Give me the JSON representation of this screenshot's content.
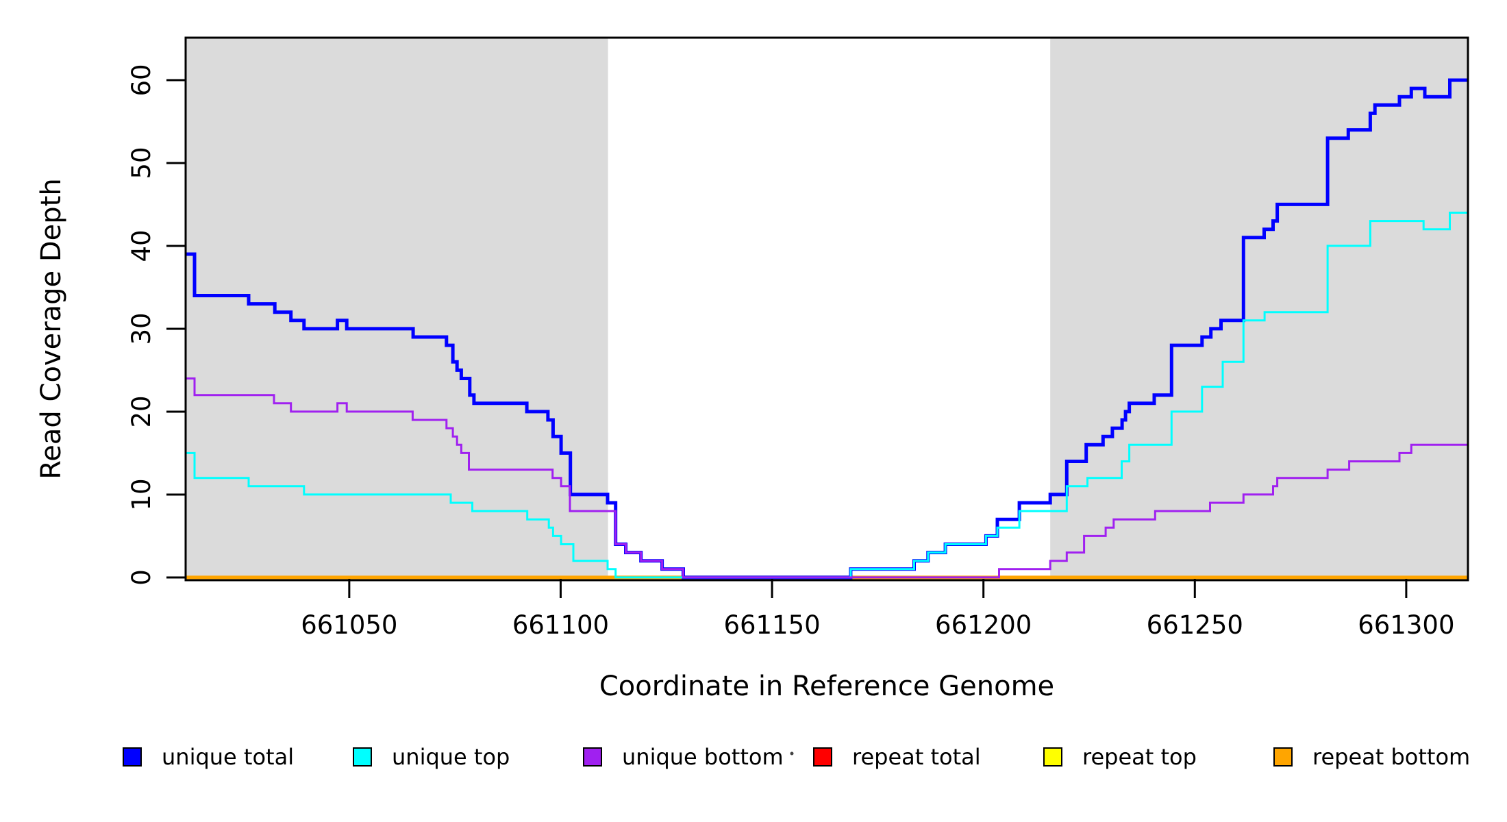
{
  "chart_data": {
    "type": "line",
    "subtype": "step",
    "title": "",
    "xlabel": "Coordinate in Reference Genome",
    "ylabel": "Read Coverage Depth",
    "xlim": [
      661011.3,
      661314.6
    ],
    "ylim": [
      -0.17,
      65.12
    ],
    "x_ticks": [
      661050,
      661100,
      661150,
      661200,
      661250,
      661300
    ],
    "y_ticks": [
      0,
      10,
      20,
      30,
      40,
      50,
      60
    ],
    "grid": false,
    "legend_position": "bottom",
    "shade_color": "#DBDBDB",
    "shaded_regions": [
      {
        "x0": 661011.3,
        "x1": 661111.2
      },
      {
        "x0": 661215.8,
        "x1": 661314.6
      }
    ],
    "series": [
      {
        "name": "repeat total",
        "color": "#FF0000",
        "width": 3,
        "steps": [
          [
            661011.3,
            0
          ]
        ]
      },
      {
        "name": "repeat top",
        "color": "#FFFF00",
        "width": 3,
        "steps": [
          [
            661011.3,
            0
          ]
        ]
      },
      {
        "name": "repeat bottom",
        "color": "#FFA500",
        "width": 5,
        "steps": [
          [
            661011.3,
            0
          ]
        ]
      },
      {
        "name": "unique total",
        "color": "#0000FF",
        "width": 5,
        "steps": [
          [
            661011.3,
            39
          ],
          [
            661013.4,
            34
          ],
          [
            661026.2,
            33
          ],
          [
            661032.4,
            32
          ],
          [
            661036.2,
            31
          ],
          [
            661039.3,
            30
          ],
          [
            661047.2,
            31
          ],
          [
            661049.4,
            30
          ],
          [
            661065.1,
            29
          ],
          [
            661073,
            28
          ],
          [
            661074.5,
            26
          ],
          [
            661075.5,
            25
          ],
          [
            661076.5,
            24
          ],
          [
            661078.5,
            22
          ],
          [
            661079.5,
            21
          ],
          [
            661092,
            20
          ],
          [
            661097,
            19
          ],
          [
            661098.2,
            17
          ],
          [
            661100.1,
            15
          ],
          [
            661102.3,
            10
          ],
          [
            661111.1,
            9
          ],
          [
            661113,
            4
          ],
          [
            661115.4,
            3
          ],
          [
            661119,
            2
          ],
          [
            661124,
            1
          ],
          [
            661129,
            0
          ],
          [
            661168.6,
            1
          ],
          [
            661183.6,
            2
          ],
          [
            661186.9,
            3
          ],
          [
            661191,
            4
          ],
          [
            661200.6,
            5
          ],
          [
            661203.3,
            7
          ],
          [
            661208.5,
            9
          ],
          [
            661215.8,
            10
          ],
          [
            661219.7,
            14
          ],
          [
            661224.3,
            16
          ],
          [
            661228.3,
            17
          ],
          [
            661230.5,
            18
          ],
          [
            661232.8,
            19
          ],
          [
            661233.6,
            20
          ],
          [
            661234.5,
            21
          ],
          [
            661240.4,
            22
          ],
          [
            661244.5,
            28
          ],
          [
            661251.7,
            29
          ],
          [
            661253.8,
            30
          ],
          [
            661256.2,
            31
          ],
          [
            661261.5,
            41
          ],
          [
            661266.4,
            42
          ],
          [
            661268.5,
            43
          ],
          [
            661269.5,
            45
          ],
          [
            661281.4,
            53
          ],
          [
            661286.3,
            54
          ],
          [
            661291.5,
            56
          ],
          [
            661292.6,
            57
          ],
          [
            661298.4,
            58
          ],
          [
            661301.2,
            59
          ],
          [
            661304.4,
            58
          ],
          [
            661310.3,
            60
          ]
        ]
      },
      {
        "name": "unique top",
        "color": "#00FFFF",
        "width": 3,
        "steps": [
          [
            661011.3,
            15
          ],
          [
            661013.4,
            12
          ],
          [
            661026.2,
            11
          ],
          [
            661039.3,
            10
          ],
          [
            661074,
            9
          ],
          [
            661079.1,
            8
          ],
          [
            661092.1,
            7
          ],
          [
            661097.2,
            6
          ],
          [
            661098.2,
            5
          ],
          [
            661100.1,
            4
          ],
          [
            661103,
            2
          ],
          [
            661111.1,
            1
          ],
          [
            661113,
            0
          ],
          [
            661168.6,
            1
          ],
          [
            661183.6,
            2
          ],
          [
            661186.9,
            3
          ],
          [
            661191,
            4
          ],
          [
            661200.6,
            5
          ],
          [
            661203.3,
            6
          ],
          [
            661208.5,
            8
          ],
          [
            661219.7,
            11
          ],
          [
            661224.6,
            12
          ],
          [
            661232.7,
            14
          ],
          [
            661234.5,
            16
          ],
          [
            661244.5,
            20
          ],
          [
            661251.7,
            23
          ],
          [
            661256.6,
            26
          ],
          [
            661261.5,
            31
          ],
          [
            661266.5,
            32
          ],
          [
            661281.4,
            40
          ],
          [
            661291.5,
            43
          ],
          [
            661304.1,
            42
          ],
          [
            661310.3,
            44
          ]
        ]
      },
      {
        "name": "unique bottom",
        "color": "#A020F0",
        "width": 3,
        "steps": [
          [
            661011.3,
            24
          ],
          [
            661013.4,
            22
          ],
          [
            661032.2,
            21
          ],
          [
            661036.2,
            20
          ],
          [
            661047.2,
            21
          ],
          [
            661049.4,
            20
          ],
          [
            661065,
            19
          ],
          [
            661073,
            18
          ],
          [
            661074.5,
            17
          ],
          [
            661075.5,
            16
          ],
          [
            661076.5,
            15
          ],
          [
            661078.3,
            13
          ],
          [
            661098.1,
            12
          ],
          [
            661100.1,
            11
          ],
          [
            661102.2,
            8
          ],
          [
            661113,
            4
          ],
          [
            661115.4,
            3
          ],
          [
            661119,
            2
          ],
          [
            661124,
            1
          ],
          [
            661129,
            0
          ],
          [
            661203.7,
            1
          ],
          [
            661215.8,
            2
          ],
          [
            661219.7,
            3
          ],
          [
            661223.8,
            5
          ],
          [
            661228.9,
            6
          ],
          [
            661230.8,
            7
          ],
          [
            661240.6,
            8
          ],
          [
            661253.6,
            9
          ],
          [
            661261.5,
            10
          ],
          [
            661268.5,
            11
          ],
          [
            661269.5,
            12
          ],
          [
            661281.4,
            13
          ],
          [
            661286.5,
            14
          ],
          [
            661298.4,
            15
          ],
          [
            661301.2,
            16
          ]
        ]
      }
    ],
    "legend": {
      "entries": [
        {
          "label": "unique total",
          "color": "#0000FF"
        },
        {
          "label": "unique top",
          "color": "#00FFFF"
        },
        {
          "label": "unique bottom",
          "color": "#A020F0"
        },
        {
          "label": "repeat total",
          "color": "#FF0000"
        },
        {
          "label": "repeat top",
          "color": "#FFFF00"
        },
        {
          "label": "repeat bottom",
          "color": "#FFA500"
        }
      ]
    },
    "stray_dot": {
      "x": 1156,
      "y": 1100
    }
  }
}
